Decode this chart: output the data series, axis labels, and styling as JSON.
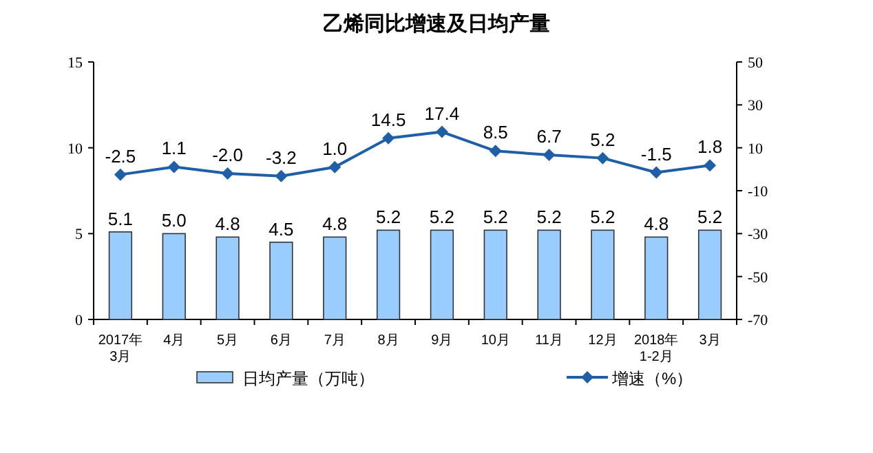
{
  "chart_data": {
    "type": "bar",
    "title": "乙烯同比增速及日均产量",
    "categories": [
      "2017年\n3月",
      "4月",
      "5月",
      "6月",
      "7月",
      "8月",
      "9月",
      "10月",
      "11月",
      "12月",
      "2018年\n1-2月",
      "3月"
    ],
    "series": [
      {
        "name": "日均产量（万吨）",
        "color": "#99ccff",
        "values": [
          5.1,
          5.0,
          4.8,
          4.5,
          4.8,
          5.2,
          5.2,
          5.2,
          5.2,
          5.2,
          4.8,
          5.2
        ],
        "value_labels": [
          "5.1",
          "5.0",
          "4.8",
          "4.5",
          "4.8",
          "5.2",
          "5.2",
          "5.2",
          "5.2",
          "5.2",
          "4.8",
          "5.2"
        ]
      },
      {
        "name": "增速（%）",
        "type": "line",
        "axis": "y2",
        "color": "#1f5fa8",
        "values": [
          -2.5,
          1.1,
          -2.0,
          -3.2,
          1.0,
          14.5,
          17.4,
          8.5,
          6.7,
          5.2,
          -1.5,
          1.8
        ],
        "value_labels": [
          "-2.5",
          "1.1",
          "-2.0",
          "-3.2",
          "1.0",
          "14.5",
          "17.4",
          "8.5",
          "6.7",
          "5.2",
          "-1.5",
          "1.8"
        ]
      }
    ],
    "ylim": [
      0,
      15
    ],
    "yticks": [
      0,
      5,
      10,
      15
    ],
    "y2lim": [
      -70,
      50
    ],
    "y2ticks": [
      -70,
      -50,
      -30,
      -10,
      10,
      30,
      50
    ],
    "legend": "bottom",
    "grid": false,
    "marker": "diamond",
    "line_style": "solid"
  }
}
